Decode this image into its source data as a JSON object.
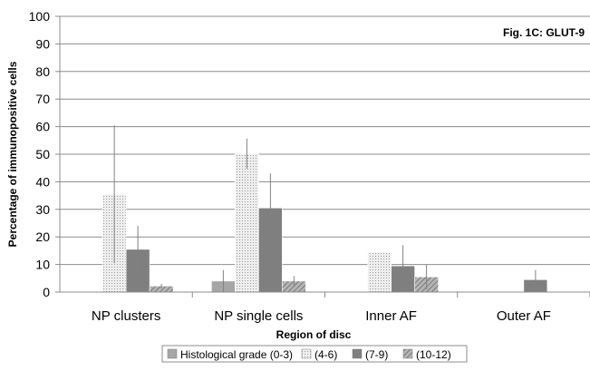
{
  "chart_data": {
    "type": "bar",
    "annotation": "Fig. 1C: GLUT-9",
    "xlabel": "Region of disc",
    "ylabel": "Percentage of immunopositive cells",
    "ylim": [
      0,
      100
    ],
    "y_ticks": [
      0,
      10,
      20,
      30,
      40,
      50,
      60,
      70,
      80,
      90,
      100
    ],
    "grid": true,
    "legend_position": "bottom",
    "categories": [
      "NP clusters",
      "NP single cells",
      "Inner AF",
      "Outer AF"
    ],
    "series": [
      {
        "name": "Histological grade (0-3)",
        "values": [
          null,
          4,
          null,
          null
        ],
        "error": [
          null,
          4,
          null,
          null
        ],
        "style": "solid",
        "color": "#a6a6a6"
      },
      {
        "name": "(4-6)",
        "values": [
          35.5,
          50.2,
          14.5,
          null
        ],
        "error": [
          25,
          5.5,
          0,
          null
        ],
        "style": "dots",
        "color": "#e6e6e6"
      },
      {
        "name": "(7-9)",
        "values": [
          15.5,
          30.5,
          9.5,
          4.5
        ],
        "error": [
          8.5,
          12.5,
          7.5,
          3.5
        ],
        "style": "solid",
        "color": "#7f7f7f"
      },
      {
        "name": "(10-12)",
        "values": [
          2.2,
          4,
          5.5,
          null
        ],
        "error": [
          0.8,
          1.8,
          4.5,
          null
        ],
        "style": "hatch",
        "color": "#a6a6a6"
      }
    ]
  }
}
